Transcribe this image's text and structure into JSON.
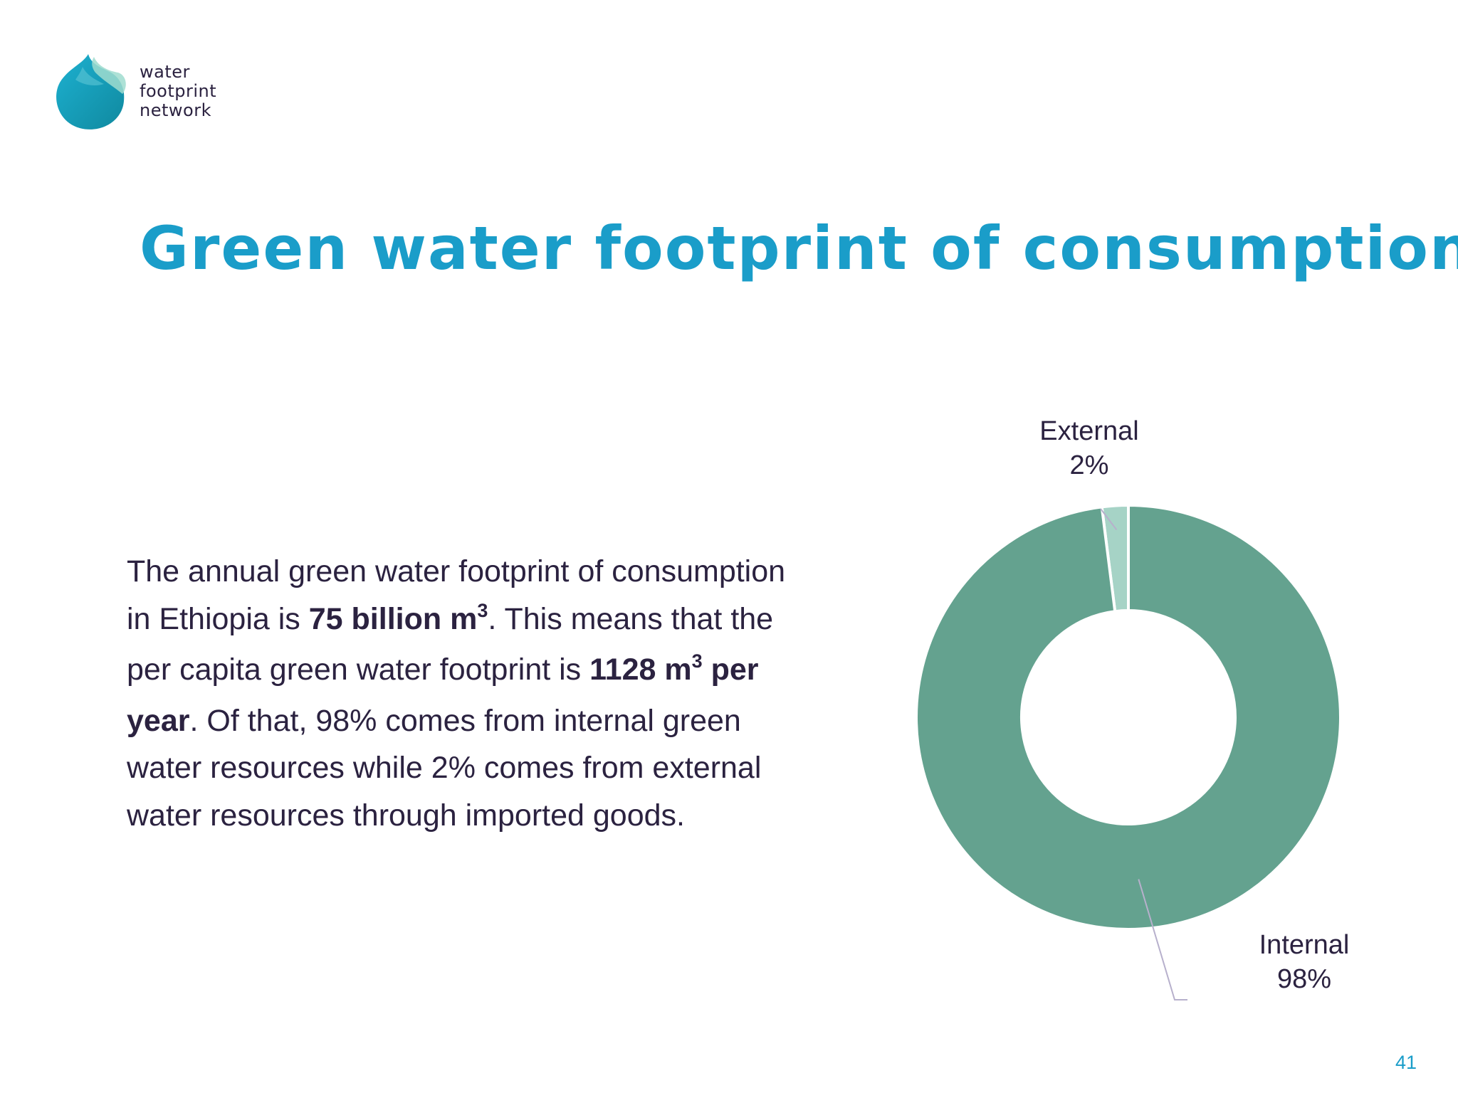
{
  "logo": {
    "lines": [
      "water",
      "footprint",
      "network"
    ]
  },
  "slide": {
    "title": "Green water footprint of consumption",
    "page_number": "41"
  },
  "body": {
    "p1": "The annual green water footprint of consumption in Ethiopia is ",
    "b1": "75 billion m",
    "sup1": "3",
    "p2": ". This means that the per capita green water footprint is ",
    "b2a": "1128 m",
    "sup2": "3",
    "b2b": " per year",
    "p3": ". Of that, 98% comes from internal green water resources while 2% comes from external water resources through imported goods."
  },
  "chart_data": {
    "type": "pie",
    "donut": true,
    "categories": [
      "External",
      "Internal"
    ],
    "values": [
      2,
      98
    ],
    "labels": [
      "2%",
      "98%"
    ],
    "colors": [
      "#a6d3c6",
      "#64a28f"
    ]
  },
  "colors": {
    "title": "#1a9dc9",
    "text": "#2b2240",
    "internal": "#64a28f",
    "external": "#a6d3c6"
  }
}
